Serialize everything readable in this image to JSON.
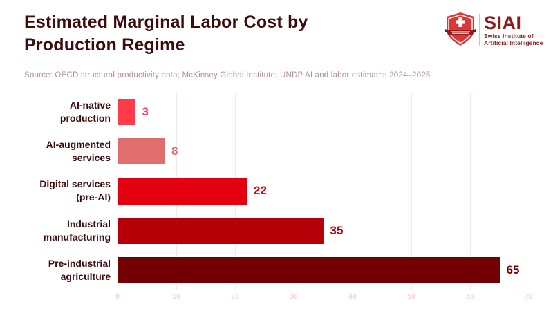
{
  "header": {
    "title_line1": "Estimated Marginal Labor Cost by",
    "title_line2": "Production Regime",
    "title_full": "Estimated Marginal Labor Cost by Production Regime",
    "source": "Source: OECD structural productivity data; McKinsey Global Institute; UNDP AI and labor estimates 2024–2025"
  },
  "logo": {
    "acronym": "SIAI",
    "name_line1": "Swiss Institute of",
    "name_line2": "Artificial Intelligence",
    "shield_red": "#D93838",
    "banner_dark_red": "#9E1B1B",
    "text_dark_red": "#8C1D1D"
  },
  "chart_data": {
    "type": "bar",
    "orientation": "horizontal",
    "title": "Estimated Marginal Labor Cost by Production Regime",
    "categories": [
      "AI-native production",
      "AI-augmented services",
      "Digital services (pre-AI)",
      "Industrial manufacturing",
      "Pre-industrial agriculture"
    ],
    "values": [
      3,
      8,
      22,
      35,
      65
    ],
    "bar_colors": [
      "#FF3B47",
      "#E06E6E",
      "#E3000F",
      "#B50008",
      "#730003"
    ],
    "xlim": [
      0,
      70
    ],
    "x_ticks": [
      0,
      10,
      20,
      30,
      40,
      50,
      60,
      70
    ],
    "grid": true,
    "gridline_color": "#FBE7E7",
    "value_labels_shown": true,
    "legend": "none",
    "xlabel": "",
    "ylabel": ""
  }
}
